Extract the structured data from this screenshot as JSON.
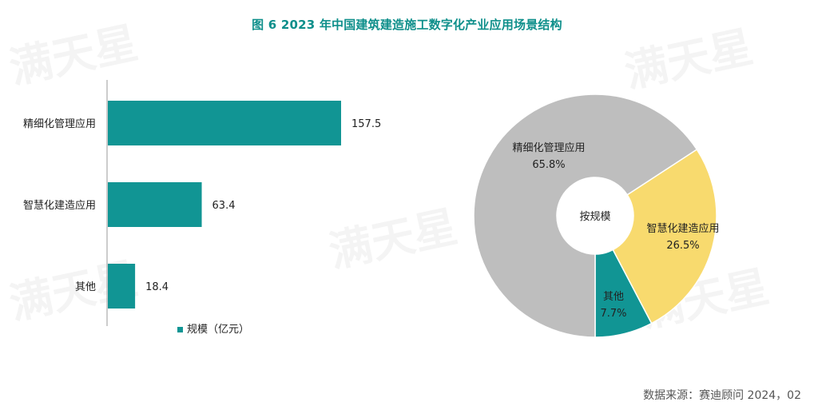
{
  "title": "图 6  2023 年中国建筑建造施工数字化产业应用场景结构",
  "source": "数据来源：赛迪顾问  2024，02",
  "watermark": "满天星",
  "colors": {
    "teal": "#119594",
    "yellow": "#f8da6e",
    "gray": "#bebebe",
    "title": "#0e8f8b"
  },
  "chart_data": [
    {
      "type": "bar",
      "orientation": "horizontal",
      "categories": [
        "精细化管理应用",
        "智慧化建造应用",
        "其他"
      ],
      "series": [
        {
          "name": "规模（亿元）",
          "values": [
            157.5,
            63.4,
            18.4
          ]
        }
      ],
      "data_labels": [
        "157.5",
        "63.4",
        "18.4"
      ],
      "legend": "bottom",
      "grid": false
    },
    {
      "type": "pie",
      "center_label": "按规模",
      "slices": [
        {
          "label": "精细化管理应用",
          "value": 65.8,
          "pct_label": "65.8%",
          "color": "#bebebe"
        },
        {
          "label": "智慧化建造应用",
          "value": 26.5,
          "pct_label": "26.5%",
          "color": "#f8da6e"
        },
        {
          "label": "其他",
          "value": 7.7,
          "pct_label": "7.7%",
          "color": "#119594"
        }
      ]
    }
  ]
}
